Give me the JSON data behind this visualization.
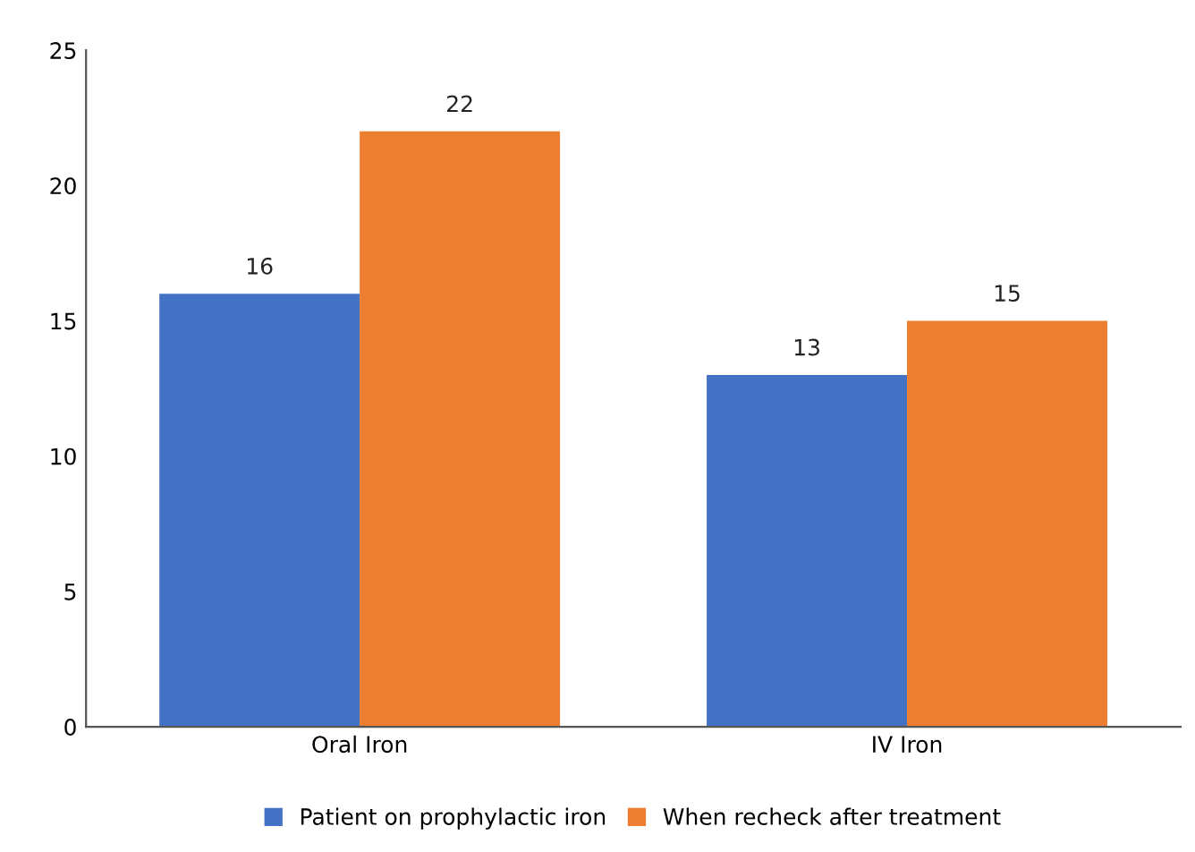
{
  "chart_data": {
    "type": "bar",
    "categories": [
      "Oral Iron",
      "IV Iron"
    ],
    "series": [
      {
        "name": "Patient on prophylactic iron",
        "color": "#4472c4",
        "values": [
          16,
          13
        ]
      },
      {
        "name": "When recheck after treatment",
        "color": "#ed7d31",
        "values": [
          22,
          15
        ]
      }
    ],
    "ylim": [
      0,
      25
    ],
    "yticks": [
      0,
      5,
      10,
      15,
      20,
      25
    ],
    "grid": false,
    "legend": "bottom",
    "data_labels": true
  }
}
